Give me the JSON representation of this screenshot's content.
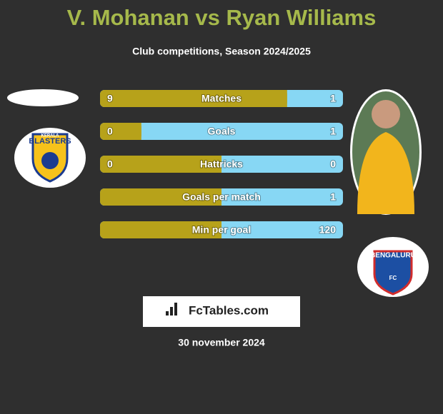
{
  "header": {
    "title": "V. Mohanan vs Ryan Williams",
    "subtitle": "Club competitions, Season 2024/2025"
  },
  "left_badge": {
    "line1": "KERALA",
    "line2": "BLASTERS"
  },
  "right_badge": {
    "line1": "BENGALURU",
    "line2": "FC"
  },
  "rows": [
    {
      "label": "Matches",
      "left": 9,
      "right": 1
    },
    {
      "label": "Goals",
      "left": 0,
      "right": 1
    },
    {
      "label": "Hattricks",
      "left": 0,
      "right": 0
    },
    {
      "label": "Goals per match",
      "left": null,
      "right": 1
    },
    {
      "label": "Min per goal",
      "left": null,
      "right": 120
    }
  ],
  "colors": {
    "left": "#b7a21a",
    "right": "#87d7f4",
    "title": "#a6b94b"
  },
  "brand": "FcTables.com",
  "date": "30 november 2024"
}
